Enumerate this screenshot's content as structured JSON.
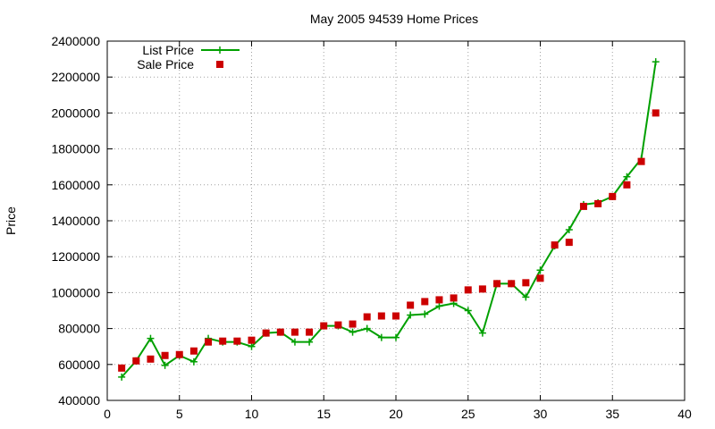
{
  "chart_data": {
    "type": "line",
    "title": "May 2005 94539 Home Prices",
    "xlabel": "",
    "ylabel": "Price",
    "xlim": [
      0,
      40
    ],
    "ylim": [
      400000,
      2400000
    ],
    "xticks": [
      0,
      5,
      10,
      15,
      20,
      25,
      30,
      35,
      40
    ],
    "yticks": [
      400000,
      600000,
      800000,
      1000000,
      1200000,
      1400000,
      1600000,
      1800000,
      2000000,
      2200000,
      2400000
    ],
    "grid": true,
    "legend_position": "top-left",
    "series": [
      {
        "name": "List Price",
        "type": "line",
        "marker": "plus",
        "color": "#00a000",
        "x": [
          1,
          2,
          3,
          4,
          5,
          6,
          7,
          8,
          9,
          10,
          11,
          12,
          13,
          14,
          15,
          16,
          17,
          18,
          19,
          20,
          21,
          22,
          23,
          24,
          25,
          26,
          27,
          28,
          29,
          30,
          31,
          32,
          33,
          34,
          35,
          36,
          37,
          38
        ],
        "y": [
          530000,
          620000,
          745000,
          595000,
          650000,
          615000,
          745000,
          725000,
          725000,
          700000,
          775000,
          780000,
          725000,
          725000,
          815000,
          815000,
          780000,
          800000,
          750000,
          750000,
          875000,
          880000,
          925000,
          940000,
          900000,
          775000,
          1050000,
          1050000,
          975000,
          1125000,
          1260000,
          1350000,
          1490000,
          1500000,
          1535000,
          1645000,
          1745000,
          2285000
        ]
      },
      {
        "name": "Sale Price",
        "type": "scatter",
        "marker": "square",
        "color": "#cc0000",
        "x": [
          1,
          2,
          3,
          4,
          5,
          6,
          7,
          8,
          9,
          10,
          11,
          12,
          13,
          14,
          15,
          16,
          17,
          18,
          19,
          20,
          21,
          22,
          23,
          24,
          25,
          26,
          27,
          28,
          29,
          30,
          31,
          32,
          33,
          34,
          35,
          36,
          37,
          38
        ],
        "y": [
          580000,
          620000,
          630000,
          650000,
          655000,
          675000,
          725000,
          730000,
          730000,
          735000,
          775000,
          780000,
          780000,
          780000,
          815000,
          820000,
          825000,
          865000,
          870000,
          870000,
          930000,
          950000,
          960000,
          970000,
          1015000,
          1020000,
          1050000,
          1050000,
          1055000,
          1080000,
          1265000,
          1280000,
          1480000,
          1495000,
          1535000,
          1600000,
          1730000,
          2000000
        ]
      }
    ]
  }
}
